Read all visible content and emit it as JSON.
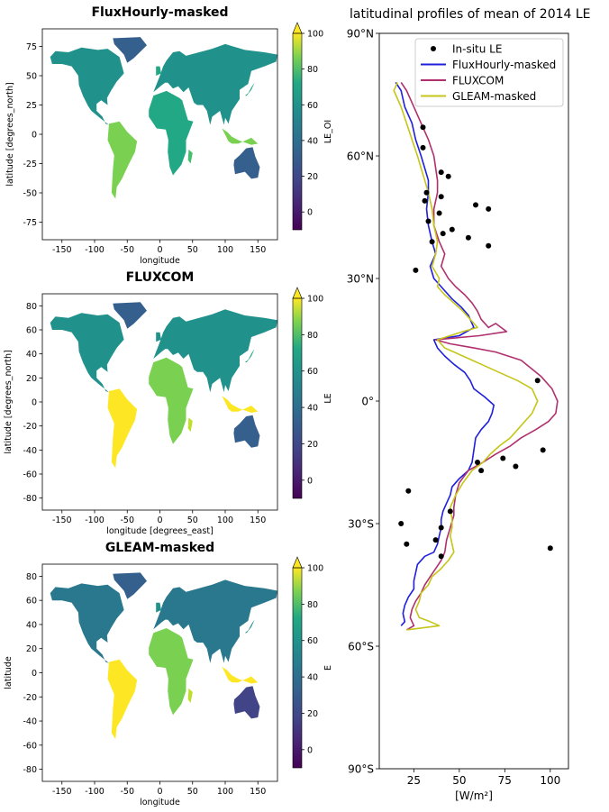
{
  "chart_data": [
    {
      "type": "heatmap",
      "title": "FluxHourly-masked",
      "xlabel": "longitude",
      "ylabel": "latitude [degrees_north]",
      "colorbar_label": "LE_OI",
      "xlim": [
        -180,
        180
      ],
      "ylim": [
        -90,
        90
      ],
      "x_ticks": [
        "-150",
        "-100",
        "-50",
        "0",
        "50",
        "100",
        "150"
      ],
      "y_ticks": [
        "75",
        "50",
        "25",
        "0",
        "-25",
        "-50",
        "-75"
      ],
      "colorbar_range": [
        -10,
        100
      ],
      "colorbar_ticks": [
        "0",
        "20",
        "40",
        "60",
        "80",
        "100"
      ],
      "colormap": "viridis",
      "extend": "max"
    },
    {
      "type": "heatmap",
      "title": "FLUXCOM",
      "xlabel": "longitude [degrees_east]",
      "ylabel": "latitude [degrees_north]",
      "colorbar_label": "LE",
      "xlim": [
        -180,
        180
      ],
      "ylim": [
        -90,
        90
      ],
      "x_ticks": [
        "-150",
        "-100",
        "-50",
        "0",
        "50",
        "100",
        "150"
      ],
      "y_ticks": [
        "80",
        "60",
        "40",
        "20",
        "0",
        "-20",
        "-40",
        "-60",
        "-80"
      ],
      "colorbar_range": [
        -10,
        100
      ],
      "colorbar_ticks": [
        "0",
        "20",
        "40",
        "60",
        "80",
        "100"
      ],
      "colormap": "viridis",
      "extend": "max"
    },
    {
      "type": "heatmap",
      "title": "GLEAM-masked",
      "xlabel": "longitude",
      "ylabel": "latitude",
      "colorbar_label": "E",
      "xlim": [
        -180,
        180
      ],
      "ylim": [
        -90,
        90
      ],
      "x_ticks": [
        "-150",
        "-100",
        "-50",
        "0",
        "50",
        "100",
        "150"
      ],
      "y_ticks": [
        "80",
        "60",
        "40",
        "20",
        "0",
        "-20",
        "-40",
        "-60",
        "-80"
      ],
      "colorbar_range": [
        -10,
        100
      ],
      "colorbar_ticks": [
        "0",
        "20",
        "40",
        "60",
        "80",
        "100"
      ],
      "colormap": "viridis",
      "extend": "max"
    },
    {
      "type": "line",
      "title": "latitudinal profiles of mean of 2014 LE",
      "xlabel": "[W/m²]",
      "ylabel": "",
      "xlim": [
        6,
        110
      ],
      "ylim": [
        -90,
        90
      ],
      "x_ticks": [
        "25",
        "50",
        "75",
        "100"
      ],
      "y_ticks": [
        "90°N",
        "60°N",
        "30°N",
        "0°",
        "30°S",
        "60°S",
        "90°S"
      ],
      "legend_position": "top-right",
      "scatter": {
        "name": "In-situ LE",
        "color": "#000000",
        "points": [
          [
            30,
            67
          ],
          [
            30,
            62
          ],
          [
            32,
            51
          ],
          [
            31,
            49
          ],
          [
            33,
            44
          ],
          [
            35,
            39
          ],
          [
            26,
            32
          ],
          [
            40,
            56
          ],
          [
            40,
            50
          ],
          [
            39,
            46
          ],
          [
            44,
            55
          ],
          [
            41,
            41
          ],
          [
            46,
            42
          ],
          [
            59,
            48
          ],
          [
            66,
            47
          ],
          [
            55,
            40
          ],
          [
            66,
            38
          ],
          [
            93,
            5
          ],
          [
            96,
            -12
          ],
          [
            81,
            -16
          ],
          [
            74,
            -14
          ],
          [
            60,
            -15
          ],
          [
            62,
            -17
          ],
          [
            45,
            -27
          ],
          [
            22,
            -22
          ],
          [
            18,
            -30
          ],
          [
            21,
            -35
          ],
          [
            40,
            -31
          ],
          [
            37,
            -34
          ],
          [
            40,
            -38
          ],
          [
            100,
            -36
          ]
        ]
      },
      "series": [
        {
          "name": "FluxHourly-masked",
          "color": "#1f1fdd",
          "points": [
            [
              15,
              78
            ],
            [
              18,
              76
            ],
            [
              20,
              72
            ],
            [
              24,
              68
            ],
            [
              26,
              64
            ],
            [
              29,
              60
            ],
            [
              31,
              57
            ],
            [
              33,
              54
            ],
            [
              33,
              51
            ],
            [
              32,
              47
            ],
            [
              33,
              43
            ],
            [
              35,
              39
            ],
            [
              37,
              36
            ],
            [
              34,
              33
            ],
            [
              36,
              30
            ],
            [
              38,
              29
            ],
            [
              42,
              27
            ],
            [
              46,
              25
            ],
            [
              51,
              23
            ],
            [
              55,
              21
            ],
            [
              58,
              18
            ],
            [
              50,
              16
            ],
            [
              36,
              15
            ],
            [
              38,
              13
            ],
            [
              42,
              11
            ],
            [
              47,
              9
            ],
            [
              53,
              7
            ],
            [
              56,
              5
            ],
            [
              58,
              3
            ],
            [
              64,
              1
            ],
            [
              69,
              -1
            ],
            [
              68,
              -3
            ],
            [
              66,
              -5
            ],
            [
              62,
              -7
            ],
            [
              59,
              -9
            ],
            [
              58,
              -12
            ],
            [
              57,
              -15
            ],
            [
              55,
              -17
            ],
            [
              50,
              -19
            ],
            [
              46,
              -21
            ],
            [
              45,
              -23
            ],
            [
              43,
              -25
            ],
            [
              41,
              -27
            ],
            [
              40,
              -29
            ],
            [
              40,
              -31
            ],
            [
              39,
              -33
            ],
            [
              38,
              -35
            ],
            [
              36,
              -37
            ],
            [
              31,
              -38
            ],
            [
              27,
              -40
            ],
            [
              26,
              -42
            ],
            [
              25,
              -44
            ],
            [
              25,
              -46
            ],
            [
              22,
              -48
            ],
            [
              20,
              -50
            ],
            [
              19,
              -52
            ],
            [
              20,
              -54
            ],
            [
              18,
              -55
            ]
          ]
        },
        {
          "name": "FLUXCOM",
          "color": "#b0306e",
          "points": [
            [
              18,
              78
            ],
            [
              21,
              76
            ],
            [
              25,
              72
            ],
            [
              29,
              68
            ],
            [
              33,
              64
            ],
            [
              36,
              60
            ],
            [
              37,
              57
            ],
            [
              38,
              54
            ],
            [
              38,
              51
            ],
            [
              36,
              47
            ],
            [
              36,
              43
            ],
            [
              39,
              39
            ],
            [
              42,
              36
            ],
            [
              40,
              33
            ],
            [
              44,
              30
            ],
            [
              48,
              28
            ],
            [
              53,
              26
            ],
            [
              57,
              24
            ],
            [
              60,
              22
            ],
            [
              62,
              20
            ],
            [
              66,
              18
            ],
            [
              70,
              19
            ],
            [
              76,
              17
            ],
            [
              61,
              16
            ],
            [
              37,
              15
            ],
            [
              45,
              14
            ],
            [
              58,
              13
            ],
            [
              70,
              12
            ],
            [
              84,
              10
            ],
            [
              95,
              6
            ],
            [
              101,
              3
            ],
            [
              104,
              0
            ],
            [
              103,
              -3
            ],
            [
              99,
              -5
            ],
            [
              92,
              -7
            ],
            [
              84,
              -9
            ],
            [
              78,
              -11
            ],
            [
              70,
              -13
            ],
            [
              63,
              -15
            ],
            [
              55,
              -17
            ],
            [
              50,
              -20
            ],
            [
              48,
              -23
            ],
            [
              47,
              -26
            ],
            [
              47,
              -28
            ],
            [
              45,
              -31
            ],
            [
              43,
              -34
            ],
            [
              42,
              -37
            ],
            [
              40,
              -39
            ],
            [
              37,
              -41
            ],
            [
              34,
              -43
            ],
            [
              31,
              -45
            ],
            [
              29,
              -47
            ],
            [
              26,
              -49
            ],
            [
              24,
              -51
            ],
            [
              23,
              -53
            ],
            [
              25,
              -55
            ],
            [
              21,
              -56
            ]
          ]
        },
        {
          "name": "GLEAM-masked",
          "color": "#c5c51a",
          "points": [
            [
              16,
              78
            ],
            [
              14,
              76
            ],
            [
              18,
              72
            ],
            [
              21,
              68
            ],
            [
              24,
              64
            ],
            [
              27,
              60
            ],
            [
              29,
              57
            ],
            [
              31,
              54
            ],
            [
              33,
              51
            ],
            [
              35,
              47
            ],
            [
              36,
              43
            ],
            [
              38,
              39
            ],
            [
              37,
              36
            ],
            [
              35,
              33
            ],
            [
              39,
              30
            ],
            [
              38,
              28
            ],
            [
              42,
              26
            ],
            [
              47,
              24
            ],
            [
              52,
              22
            ],
            [
              56,
              20
            ],
            [
              60,
              18
            ],
            [
              52,
              17
            ],
            [
              38,
              15
            ],
            [
              42,
              13
            ],
            [
              52,
              11
            ],
            [
              62,
              9
            ],
            [
              72,
              7
            ],
            [
              82,
              5
            ],
            [
              90,
              3
            ],
            [
              93,
              0
            ],
            [
              90,
              -3
            ],
            [
              84,
              -6
            ],
            [
              78,
              -9
            ],
            [
              72,
              -11
            ],
            [
              67,
              -13
            ],
            [
              63,
              -15
            ],
            [
              57,
              -17
            ],
            [
              52,
              -20
            ],
            [
              48,
              -23
            ],
            [
              45,
              -26
            ],
            [
              46,
              -29
            ],
            [
              46,
              -31
            ],
            [
              45,
              -33
            ],
            [
              46,
              -35
            ],
            [
              47,
              -37
            ],
            [
              44,
              -39
            ],
            [
              40,
              -41
            ],
            [
              35,
              -43
            ],
            [
              33,
              -45
            ],
            [
              29,
              -47
            ],
            [
              28,
              -49
            ],
            [
              26,
              -51
            ],
            [
              28,
              -53
            ],
            [
              34,
              -54
            ],
            [
              39,
              -55
            ],
            [
              21,
              -56
            ]
          ]
        }
      ]
    }
  ]
}
